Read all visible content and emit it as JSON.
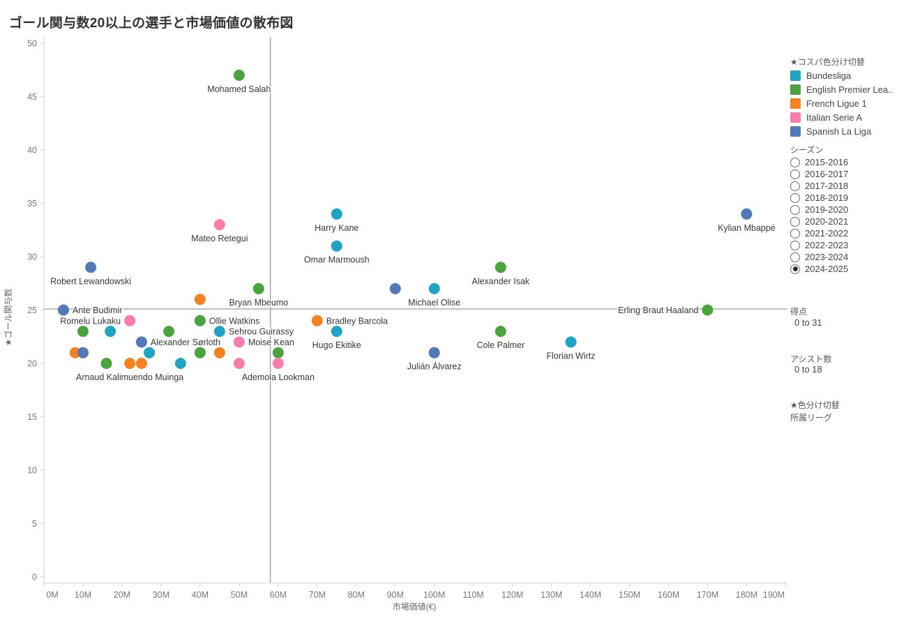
{
  "chart_data": {
    "type": "scatter",
    "title": "ゴール関与数20以上の選手と市場価値の散布図",
    "xlabel": "市場価値(€)",
    "ylabel": "★ゴール関与数",
    "xlim": [
      0,
      190
    ],
    "ylim": [
      0,
      50
    ],
    "x_tick_labels": [
      "0M",
      "10M",
      "20M",
      "30M",
      "40M",
      "50M",
      "60M",
      "70M",
      "80M",
      "90M",
      "100M",
      "110M",
      "120M",
      "130M",
      "140M",
      "150M",
      "160M",
      "170M",
      "180M",
      "190M"
    ],
    "y_tick_labels": [
      "0",
      "5",
      "10",
      "15",
      "20",
      "25",
      "30",
      "35",
      "40",
      "45",
      "50"
    ],
    "grid": false,
    "reference_lines": {
      "vertical_x_m": 58,
      "horizontal_y": 25
    },
    "league_colors": {
      "Bundesliga": "#21a3c4",
      "English Premier League": "#4aa33e",
      "French Ligue 1": "#f58220",
      "Italian Serie A": "#fa7dab",
      "Spanish La Liga": "#5079b5"
    },
    "points": [
      {
        "name": "Mohamed Salah",
        "league": "English Premier League",
        "market_value_m": 50,
        "goal_involvements": 47,
        "label": "below"
      },
      {
        "name": "Harry Kane",
        "league": "Bundesliga",
        "market_value_m": 75,
        "goal_involvements": 34,
        "label": "below"
      },
      {
        "name": "Kylian Mbappé",
        "league": "Spanish La Liga",
        "market_value_m": 180,
        "goal_involvements": 34,
        "label": "below"
      },
      {
        "name": "Mateo Retegui",
        "league": "Italian Serie A",
        "market_value_m": 45,
        "goal_involvements": 33,
        "label": "below"
      },
      {
        "name": "Omar Marmoush",
        "league": "Bundesliga",
        "market_value_m": 75,
        "goal_involvements": 31,
        "label": "below"
      },
      {
        "name": "Robert Lewandowski",
        "league": "Spanish La Liga",
        "market_value_m": 12,
        "goal_involvements": 29,
        "label": "below"
      },
      {
        "name": "Alexander Isak",
        "league": "English Premier League",
        "market_value_m": 117,
        "goal_involvements": 29,
        "label": "below"
      },
      {
        "name": null,
        "league": "Spanish La Liga",
        "market_value_m": 90,
        "goal_involvements": 27,
        "label": "none"
      },
      {
        "name": "Michael Olise",
        "league": "Bundesliga",
        "market_value_m": 100,
        "goal_involvements": 27,
        "label": "below"
      },
      {
        "name": "Bryan Mbeumo",
        "league": "English Premier League",
        "market_value_m": 55,
        "goal_involvements": 27,
        "label": "below"
      },
      {
        "name": null,
        "league": "French Ligue 1",
        "market_value_m": 40,
        "goal_involvements": 26,
        "label": "none"
      },
      {
        "name": "Ante Budimir",
        "league": "Spanish La Liga",
        "market_value_m": 5,
        "goal_involvements": 25,
        "label": "right"
      },
      {
        "name": "Erling Braut Haaland",
        "league": "English Premier League",
        "market_value_m": 170,
        "goal_involvements": 25,
        "label": "left"
      },
      {
        "name": "Romelu Lukaku",
        "league": "Italian Serie A",
        "market_value_m": 22,
        "goal_involvements": 24,
        "label": "left"
      },
      {
        "name": "Ollie Watkins",
        "league": "English Premier League",
        "market_value_m": 40,
        "goal_involvements": 24,
        "label": "right"
      },
      {
        "name": "Bradley Barcola",
        "league": "French Ligue 1",
        "market_value_m": 70,
        "goal_involvements": 24,
        "label": "right"
      },
      {
        "name": null,
        "league": "English Premier League",
        "market_value_m": 10,
        "goal_involvements": 23,
        "label": "none"
      },
      {
        "name": null,
        "league": "Bundesliga",
        "market_value_m": 17,
        "goal_involvements": 23,
        "label": "none"
      },
      {
        "name": null,
        "league": "English Premier League",
        "market_value_m": 32,
        "goal_involvements": 23,
        "label": "none"
      },
      {
        "name": "Sehrou Guirassy",
        "league": "Bundesliga",
        "market_value_m": 45,
        "goal_involvements": 23,
        "label": "right"
      },
      {
        "name": "Hugo Ekitike",
        "league": "Bundesliga",
        "market_value_m": 75,
        "goal_involvements": 23,
        "label": "below"
      },
      {
        "name": "Cole Palmer",
        "league": "English Premier League",
        "market_value_m": 117,
        "goal_involvements": 23,
        "label": "below"
      },
      {
        "name": "Alexander Sørloth",
        "league": "Spanish La Liga",
        "market_value_m": 25,
        "goal_involvements": 22,
        "label": "right"
      },
      {
        "name": "Moise Kean",
        "league": "Italian Serie A",
        "market_value_m": 50,
        "goal_involvements": 22,
        "label": "right"
      },
      {
        "name": "Florian Wirtz",
        "league": "Bundesliga",
        "market_value_m": 135,
        "goal_involvements": 22,
        "label": "below"
      },
      {
        "name": null,
        "league": "French Ligue 1",
        "market_value_m": 8,
        "goal_involvements": 21,
        "label": "none"
      },
      {
        "name": null,
        "league": "Spanish La Liga",
        "market_value_m": 10,
        "goal_involvements": 21,
        "label": "none"
      },
      {
        "name": null,
        "league": "Bundesliga",
        "market_value_m": 27,
        "goal_involvements": 21,
        "label": "none"
      },
      {
        "name": null,
        "league": "English Premier League",
        "market_value_m": 40,
        "goal_involvements": 21,
        "label": "none"
      },
      {
        "name": null,
        "league": "French Ligue 1",
        "market_value_m": 45,
        "goal_involvements": 21,
        "label": "none"
      },
      {
        "name": null,
        "league": "English Premier League",
        "market_value_m": 60,
        "goal_involvements": 21,
        "label": "none"
      },
      {
        "name": "Julián Álvarez",
        "league": "Spanish La Liga",
        "market_value_m": 100,
        "goal_involvements": 21,
        "label": "below"
      },
      {
        "name": null,
        "league": "English Premier League",
        "market_value_m": 16,
        "goal_involvements": 20,
        "label": "none"
      },
      {
        "name": "Arnaud Kalimuendo Muinga",
        "league": "French Ligue 1",
        "market_value_m": 22,
        "goal_involvements": 20,
        "label": "below"
      },
      {
        "name": null,
        "league": "French Ligue 1",
        "market_value_m": 25,
        "goal_involvements": 20,
        "label": "none"
      },
      {
        "name": null,
        "league": "Bundesliga",
        "market_value_m": 35,
        "goal_involvements": 20,
        "label": "none"
      },
      {
        "name": null,
        "league": "Italian Serie A",
        "market_value_m": 50,
        "goal_involvements": 20,
        "label": "none"
      },
      {
        "name": "Ademola Lookman",
        "league": "Italian Serie A",
        "market_value_m": 60,
        "goal_involvements": 20,
        "label": "below"
      }
    ],
    "legend": {
      "title": "★コスパ色分け切替",
      "items": [
        {
          "label": "Bundesliga",
          "color": "#21a3c4"
        },
        {
          "label": "English Premier Lea..",
          "color": "#4aa33e"
        },
        {
          "label": "French Ligue 1",
          "color": "#f58220"
        },
        {
          "label": "Italian Serie A",
          "color": "#fa7dab"
        },
        {
          "label": "Spanish La Liga",
          "color": "#5079b5"
        }
      ],
      "position": "right"
    },
    "seasons": {
      "title": "シーズン",
      "options": [
        "2015-2016",
        "2016-2017",
        "2017-2018",
        "2018-2019",
        "2019-2020",
        "2020-2021",
        "2021-2022",
        "2022-2023",
        "2023-2024",
        "2024-2025"
      ],
      "selected": "2024-2025"
    },
    "size_legends": [
      {
        "title": "得点",
        "range": "0 to 31"
      },
      {
        "title": "アシスト数",
        "range": "0 to 18"
      }
    ],
    "color_switch": {
      "title": "★色分け切替",
      "value": "所属リーグ"
    }
  }
}
